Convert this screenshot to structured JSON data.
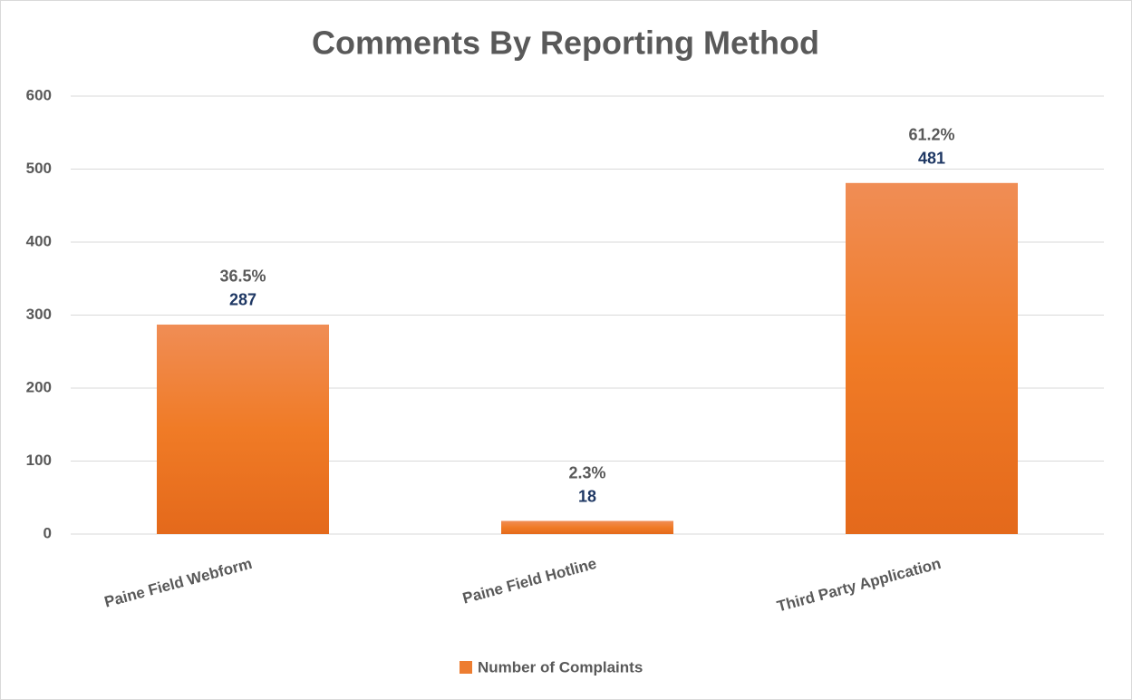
{
  "chart_data": {
    "type": "bar",
    "title": "Comments By Reporting Method",
    "categories": [
      "Paine Field Webform",
      "Paine Field Hotline",
      "Third Party Application"
    ],
    "series": [
      {
        "name": "Number of Complaints",
        "color": "#ed7d31",
        "values": [
          287,
          18,
          481
        ],
        "percent_labels": [
          "36.5%",
          "2.3%",
          "61.2%"
        ]
      }
    ],
    "ylim": [
      0,
      600
    ],
    "yticks": [
      0,
      100,
      200,
      300,
      400,
      500,
      600
    ],
    "grid": true,
    "legend": "bottom"
  }
}
